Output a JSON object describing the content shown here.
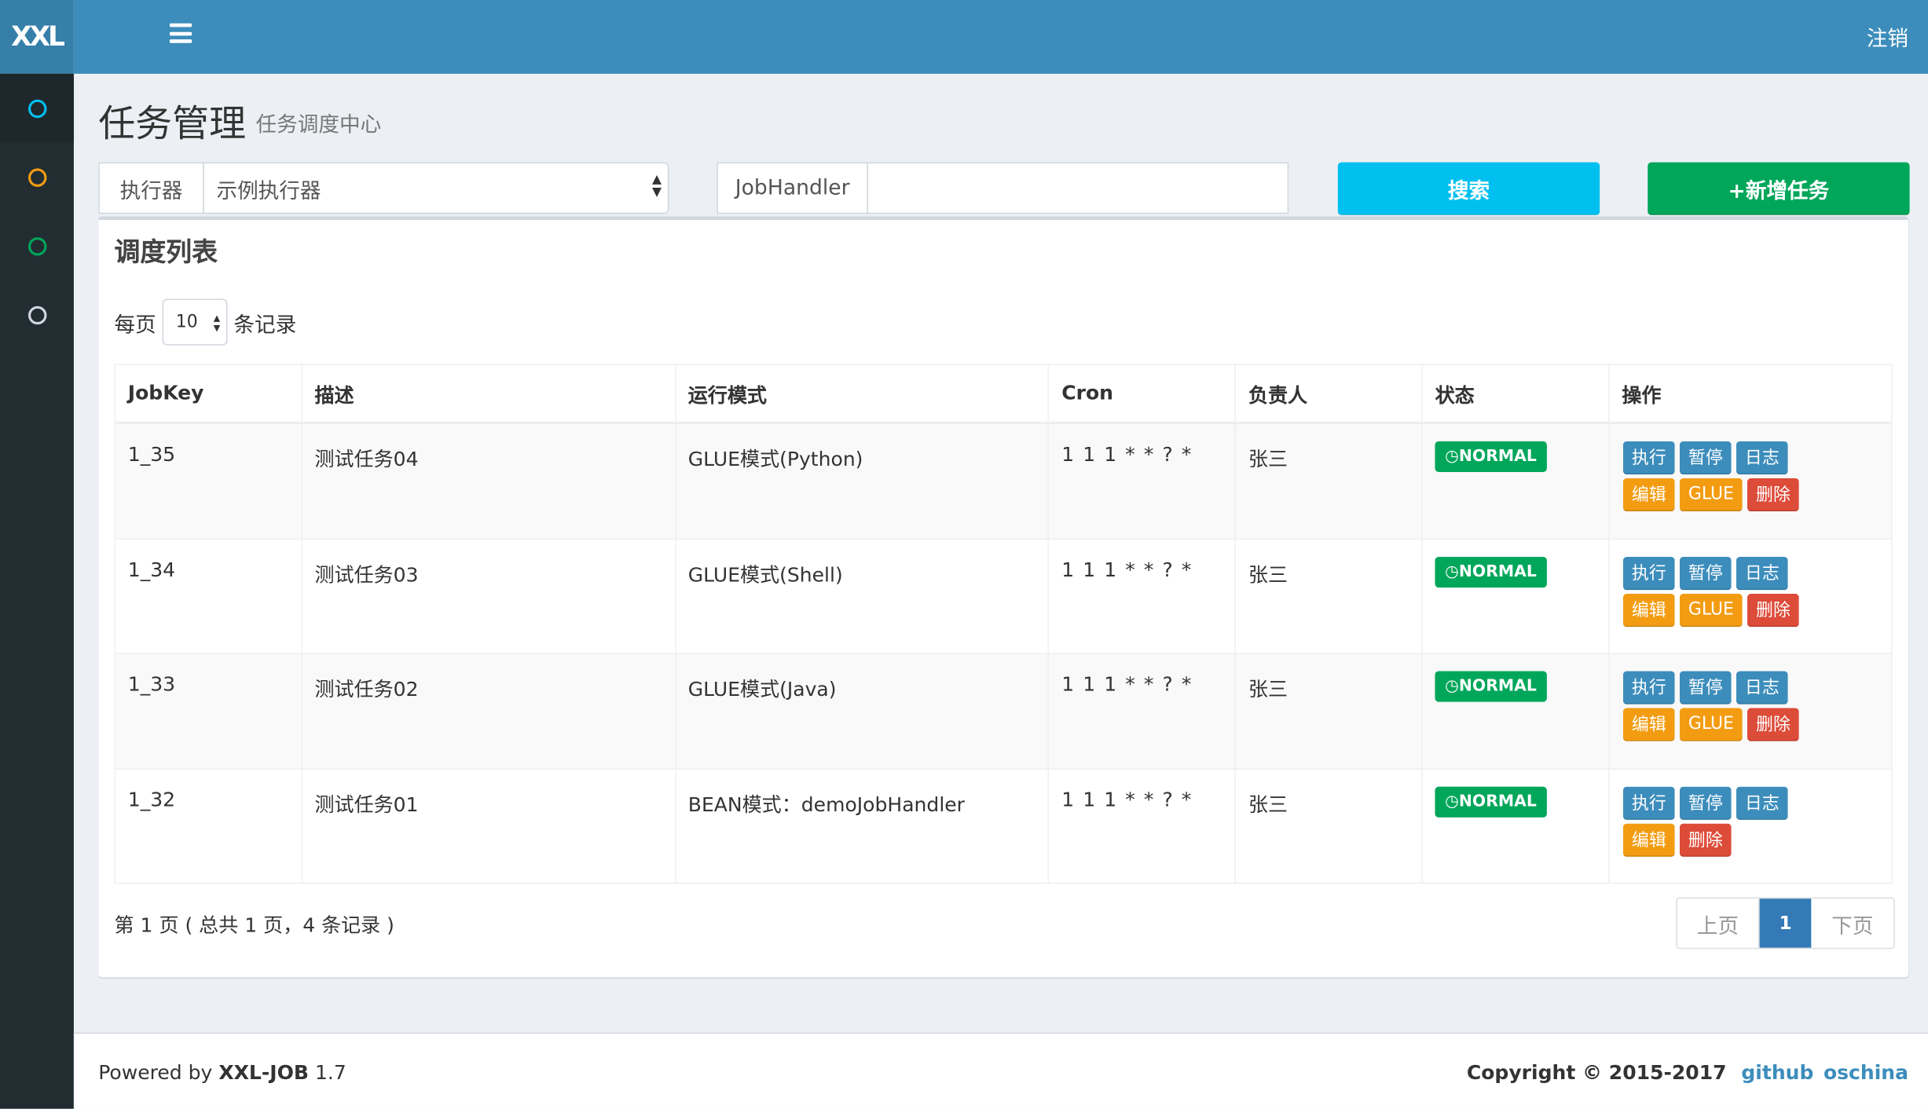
{
  "header": {
    "logo": "XXL",
    "logout": "注销"
  },
  "sidebar": {
    "items": [
      {
        "icon": "circle-icon",
        "color": "#00c0ef"
      },
      {
        "icon": "circle-icon",
        "color": "#f39c12"
      },
      {
        "icon": "circle-icon",
        "color": "#00a65a"
      },
      {
        "icon": "circle-icon",
        "color": "#d2d6de"
      }
    ]
  },
  "page": {
    "title": "任务管理",
    "subtitle": "任务调度中心"
  },
  "filters": {
    "executor_label": "执行器",
    "executor_value": "示例执行器",
    "jobhandler_label": "JobHandler",
    "jobhandler_value": "",
    "search": "搜索",
    "add": "+新增任务"
  },
  "box": {
    "title": "调度列表",
    "per_page_prefix": "每页",
    "per_page_value": "10",
    "per_page_suffix": "条记录"
  },
  "table": {
    "headers": [
      "JobKey",
      "描述",
      "运行模式",
      "Cron",
      "负责人",
      "状态",
      "操作"
    ],
    "rows": [
      {
        "key": "1_35",
        "desc": "测试任务04",
        "mode": "GLUE模式(Python)",
        "cron": "1 1 1 * * ? *",
        "owner": "张三",
        "status": "NORMAL",
        "ops": [
          "执行",
          "暂停",
          "日志",
          "编辑",
          "GLUE",
          "删除"
        ]
      },
      {
        "key": "1_34",
        "desc": "测试任务03",
        "mode": "GLUE模式(Shell)",
        "cron": "1 1 1 * * ? *",
        "owner": "张三",
        "status": "NORMAL",
        "ops": [
          "执行",
          "暂停",
          "日志",
          "编辑",
          "GLUE",
          "删除"
        ]
      },
      {
        "key": "1_33",
        "desc": "测试任务02",
        "mode": "GLUE模式(Java)",
        "cron": "1 1 1 * * ? *",
        "owner": "张三",
        "status": "NORMAL",
        "ops": [
          "执行",
          "暂停",
          "日志",
          "编辑",
          "GLUE",
          "删除"
        ]
      },
      {
        "key": "1_32",
        "desc": "测试任务01",
        "mode": "BEAN模式：demoJobHandler",
        "cron": "1 1 1 * * ? *",
        "owner": "张三",
        "status": "NORMAL",
        "ops": [
          "执行",
          "暂停",
          "日志",
          "编辑",
          "删除"
        ]
      }
    ]
  },
  "pagination": {
    "info": "第 1 页 ( 总共 1 页，4 条记录 )",
    "prev": "上页",
    "current": "1",
    "next": "下页"
  },
  "footer": {
    "powered_prefix": "Powered by ",
    "product": "XXL-JOB",
    "version": " 1.7",
    "copyright": "Copyright © 2015-2017",
    "github": "github",
    "oschina": "oschina"
  },
  "colors": {
    "primary": "#3c8dbc",
    "info": "#00c0ef",
    "success": "#00a65a",
    "warning": "#f39c12",
    "danger": "#dd4b39"
  }
}
